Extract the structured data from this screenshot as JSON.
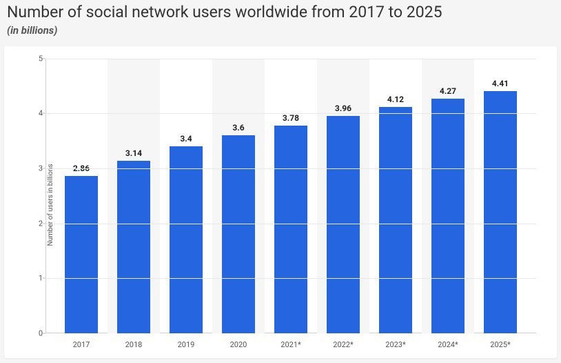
{
  "header": {
    "title": "Number of social network users worldwide from 2017 to 2025",
    "subtitle": "(in billions)"
  },
  "chart": {
    "type": "bar",
    "y_axis_label": "Number of users in billions",
    "ylim": [
      0,
      5
    ],
    "ytick_step": 1,
    "yticks": [
      0,
      1,
      2,
      3,
      4,
      5
    ],
    "categories": [
      "2017",
      "2018",
      "2019",
      "2020",
      "2021*",
      "2022*",
      "2023*",
      "2024*",
      "2025*"
    ],
    "values": [
      2.86,
      3.14,
      3.4,
      3.6,
      3.78,
      3.96,
      4.12,
      4.27,
      4.41
    ],
    "bar_color": "#2566e0",
    "grid_color": "#e8e8e8",
    "alt_band_color": "#f6f6f6",
    "background_color": "#ffffff",
    "value_label_fontsize": 12,
    "value_label_fontweight": 700,
    "axis_tick_fontsize": 11,
    "axis_label_fontsize": 10,
    "bar_width_ratio": 0.62
  }
}
